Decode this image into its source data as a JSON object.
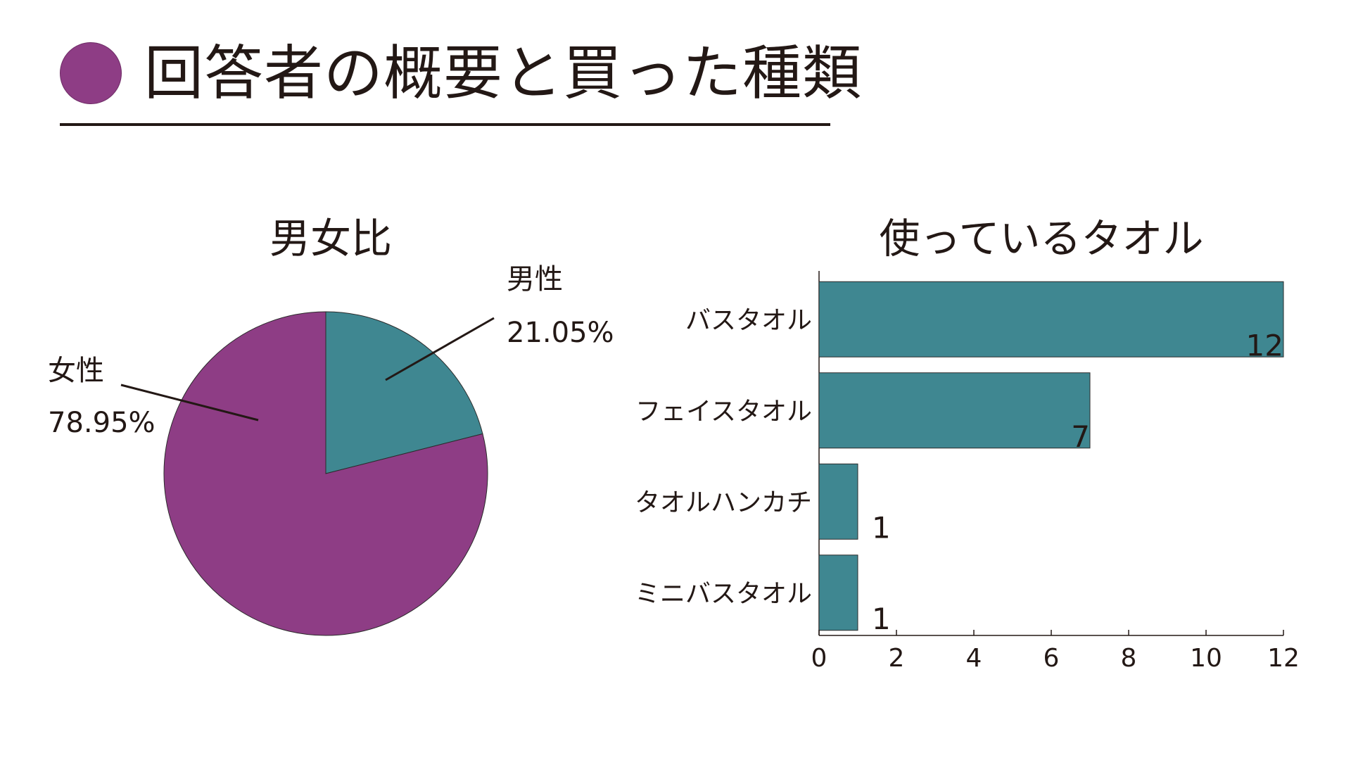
{
  "header": {
    "title": "回答者の概要と買った種類"
  },
  "colors": {
    "accent_purple": "#8E3D85",
    "accent_teal": "#3F8791",
    "text": "#231815"
  },
  "chart_data": [
    {
      "type": "pie",
      "title": "男女比",
      "slices": [
        {
          "label": "男性",
          "value": 21.05,
          "value_label": "21.05%",
          "color": "#3F8791"
        },
        {
          "label": "女性",
          "value": 78.95,
          "value_label": "78.95%",
          "color": "#8E3D85"
        }
      ]
    },
    {
      "type": "bar",
      "orientation": "horizontal",
      "title": "使っているタオル",
      "categories": [
        "バスタオル",
        "フェイスタオル",
        "タオルハンカチ",
        "ミニバスタオル"
      ],
      "values": [
        12,
        7,
        1,
        1
      ],
      "xlim": [
        0,
        12
      ],
      "xticks": [
        0,
        2,
        4,
        6,
        8,
        10,
        12
      ],
      "color": "#3F8791",
      "grid": false,
      "xlabel": "",
      "ylabel": ""
    }
  ]
}
